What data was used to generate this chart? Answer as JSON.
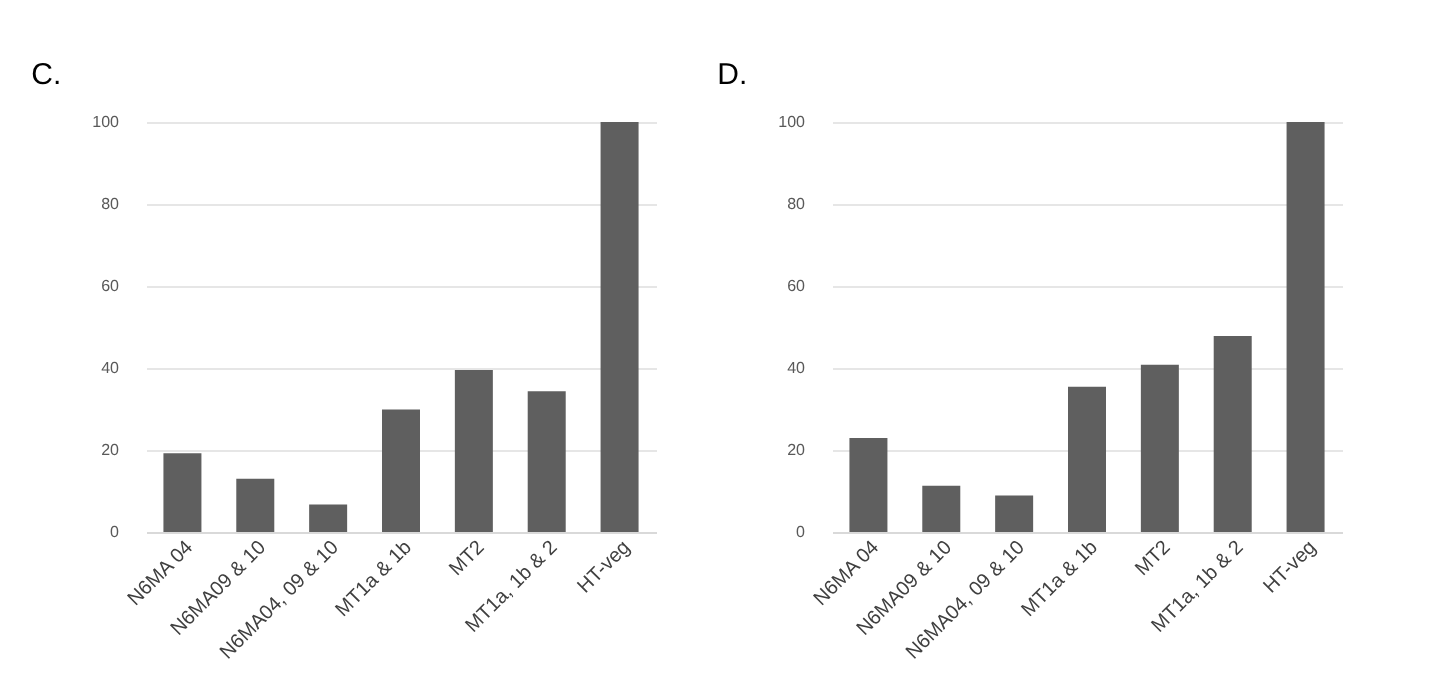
{
  "chart_data": [
    {
      "type": "bar",
      "title": "C.",
      "categories": [
        "N6MA 04",
        "N6MA09 & 10",
        "N6MA04, 09 & 10",
        "MT1a & 1b",
        "MT2",
        "MT1a, 1b & 2",
        "HT-veg"
      ],
      "values": [
        19.2,
        13,
        6.7,
        29.9,
        39.5,
        34.3,
        100
      ],
      "color": "#5f5f5f",
      "ylim": [
        0,
        100
      ],
      "yticks": [
        0,
        20,
        40,
        60,
        80,
        100
      ],
      "grid": "y"
    },
    {
      "type": "bar",
      "title": "D.",
      "categories": [
        "N6MA 04",
        "N6MA09 & 10",
        "N6MA04, 09 & 10",
        "MT1a & 1b",
        "MT2",
        "MT1a, 1b & 2",
        "HT-veg"
      ],
      "values": [
        22.9,
        11.3,
        8.9,
        35.4,
        40.8,
        47.8,
        100
      ],
      "color": "#5f5f5f",
      "ylim": [
        0,
        100
      ],
      "yticks": [
        0,
        20,
        40,
        60,
        80,
        100
      ],
      "grid": "y"
    }
  ]
}
